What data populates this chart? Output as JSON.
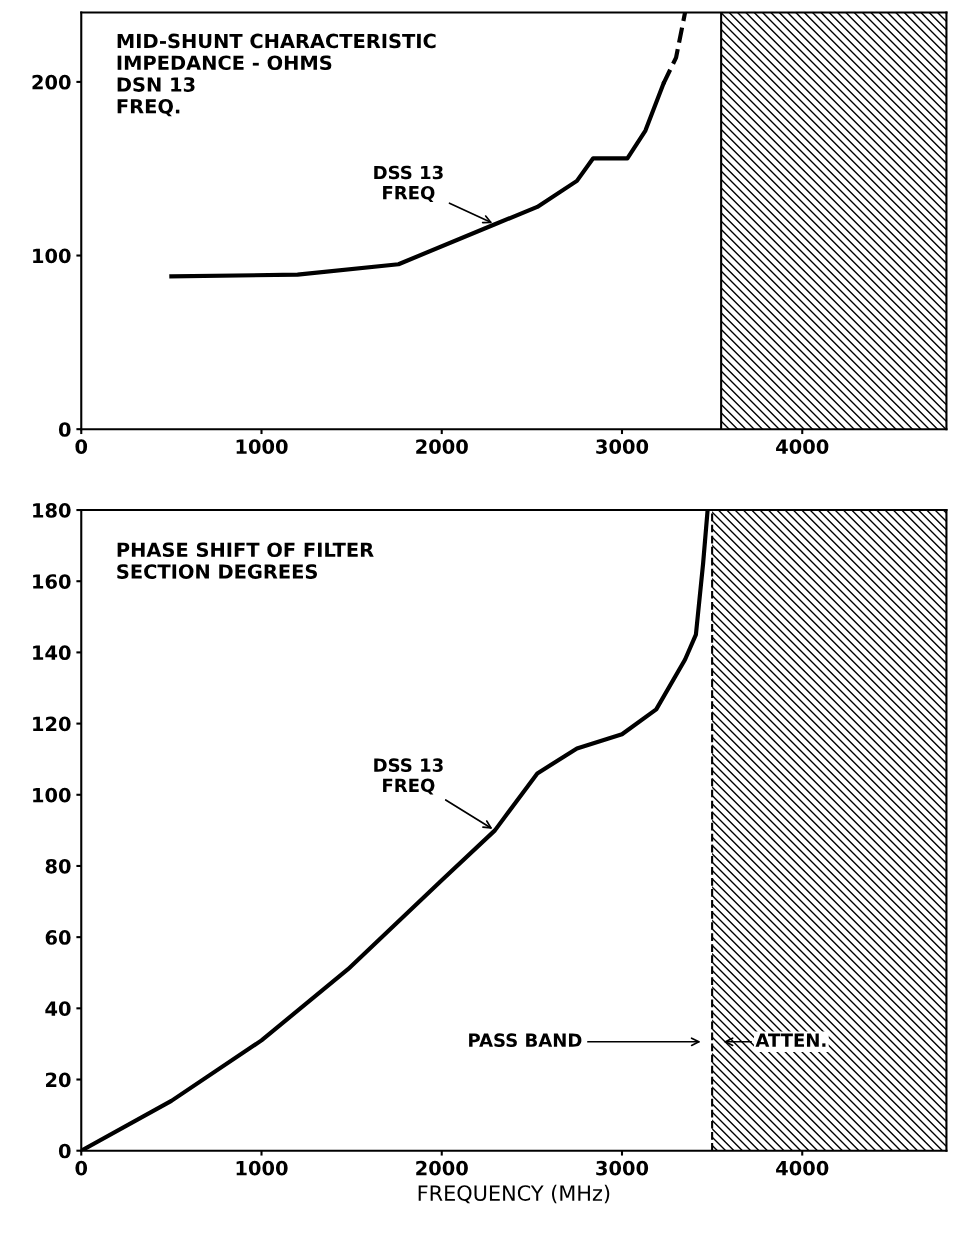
{
  "chart_data": [
    {
      "type": "line",
      "title": "MID-SHUNT CHARACTERISTIC\nIMPEDANCE - OHMS\nDSN 13\nFREQ.",
      "xlim": [
        0,
        4800
      ],
      "ylim": [
        0,
        240
      ],
      "xticks": [
        0,
        1000,
        2000,
        3000,
        4000
      ],
      "yticks": [
        0,
        100,
        200
      ],
      "grid": false,
      "series": [
        {
          "color": "#000000",
          "line_style": "solid",
          "x": [
            500,
            1200,
            1760,
            2295,
            2530,
            2750,
            2840,
            3030,
            3130,
            3230
          ],
          "values": [
            88,
            89,
            95,
            118,
            128,
            143,
            156,
            156,
            172,
            199
          ]
        },
        {
          "color": "#000000",
          "line_style": "dashed",
          "x": [
            3230,
            3300,
            3350
          ],
          "values": [
            199,
            214,
            240
          ]
        }
      ],
      "bands": [
        {
          "axis": "x",
          "from": 3550,
          "to": 4800,
          "color": "#000000"
        }
      ],
      "ref_lines": [
        {
          "axis": "x",
          "value": 3550,
          "color": "#000000",
          "line_style": "solid"
        }
      ],
      "annotations": [
        {
          "text": "DSS 13\nFREQ",
          "x": 2295,
          "y": 118
        }
      ]
    },
    {
      "type": "line",
      "title": "PHASE SHIFT OF FILTER\nSECTION DEGREES",
      "xlabel": "FREQUENCY (MHz)",
      "xlim": [
        0,
        4800
      ],
      "ylim": [
        0,
        180
      ],
      "xticks": [
        0,
        1000,
        2000,
        3000,
        4000
      ],
      "yticks": [
        0,
        20,
        40,
        60,
        80,
        100,
        120,
        140,
        160,
        180
      ],
      "grid": false,
      "series": [
        {
          "color": "#000000",
          "line_style": "solid",
          "x": [
            0,
            500,
            1000,
            1480,
            2000,
            2295,
            2530,
            2750,
            3000,
            3190,
            3350,
            3410,
            3450,
            3475
          ],
          "values": [
            0,
            14,
            31,
            51,
            76,
            90,
            106,
            113,
            117,
            124,
            138,
            145,
            165,
            180
          ]
        }
      ],
      "bands": [
        {
          "axis": "x",
          "from": 3500,
          "to": 4800,
          "color": "#000000"
        }
      ],
      "ref_lines": [
        {
          "axis": "x",
          "value": 3500,
          "color": "#000000",
          "line_style": "dashed"
        }
      ],
      "annotations": [
        {
          "text": "DSS 13\nFREQ",
          "x": 2295,
          "y": 90
        },
        "PASS BAND",
        "ATTEN."
      ]
    }
  ]
}
